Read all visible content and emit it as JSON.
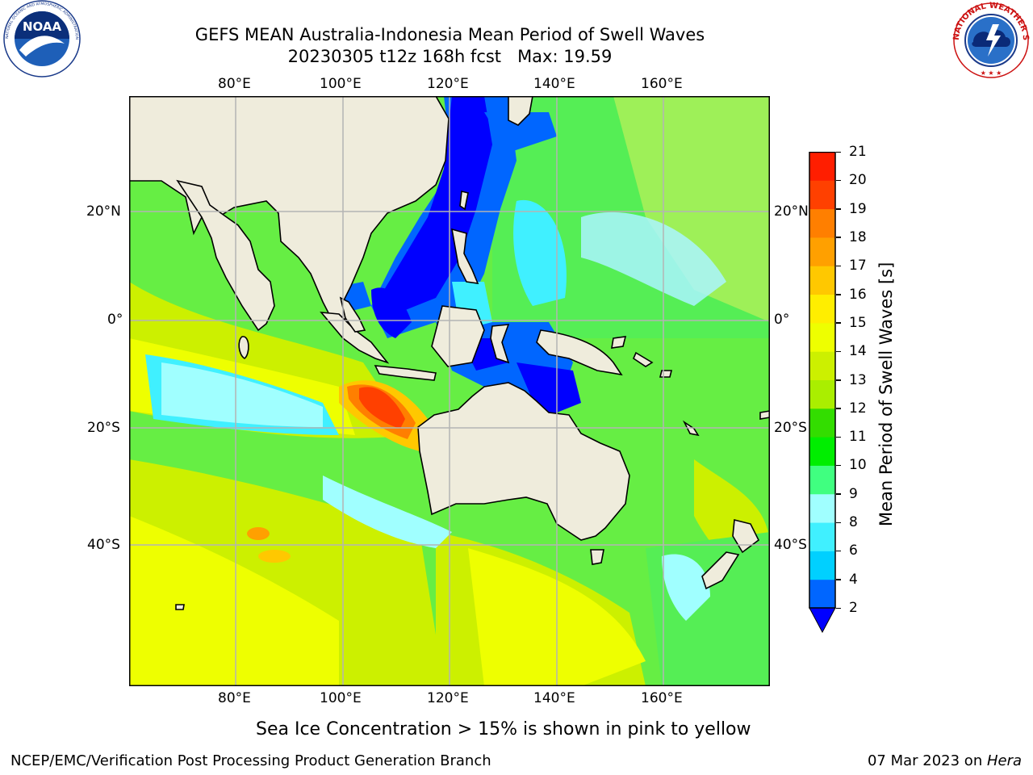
{
  "header": {
    "title_line1": "GEFS MEAN Australia-Indonesia Mean Period of Swell Waves",
    "title_line2": "20230305 t12z 168h fcst   Max: 19.59",
    "noaa_logo_text": "NOAA",
    "noaa_logo_ring_text": "NATIONAL OCEANIC AND ATMOSPHERIC ADMINISTRATION · U.S. DEPARTMENT OF COMMERCE",
    "nws_logo_ring_text": "NATIONAL WEATHER SERVICE"
  },
  "map": {
    "lon_labels": [
      "80°E",
      "100°E",
      "120°E",
      "140°E",
      "160°E"
    ],
    "lat_labels": [
      "20°N",
      "0°",
      "20°S",
      "40°S"
    ],
    "projection": "cylindrical",
    "lon_range": [
      60,
      180
    ],
    "lat_range": [
      -68,
      42
    ],
    "grid": true,
    "land_color": "#efecdc",
    "ocean_field": "Mean Period of Swell Waves"
  },
  "colorbar": {
    "label": "Mean Period of Swell Waves [s]",
    "ticks": [
      "2",
      "4",
      "6",
      "8",
      "9",
      "10",
      "11",
      "12",
      "13",
      "14",
      "15",
      "16",
      "17",
      "18",
      "19",
      "20",
      "21"
    ],
    "colors": [
      "#0066ff",
      "#00d0ff",
      "#40f0ff",
      "#a0ffff",
      "#40ff80",
      "#00ee00",
      "#33dd00",
      "#aaee00",
      "#ccf000",
      "#eeff00",
      "#ffee00",
      "#ffc800",
      "#ffa000",
      "#ff7f00",
      "#ff4000",
      "#ff1e00"
    ],
    "under_color": "#0000ff"
  },
  "note": "Sea Ice Concentration > 15% is shown in pink to yellow",
  "footer": {
    "left": "NCEP/EMC/Verification Post Processing Product Generation Branch",
    "date": "07 Mar 2023 on ",
    "machine": "Hera"
  }
}
